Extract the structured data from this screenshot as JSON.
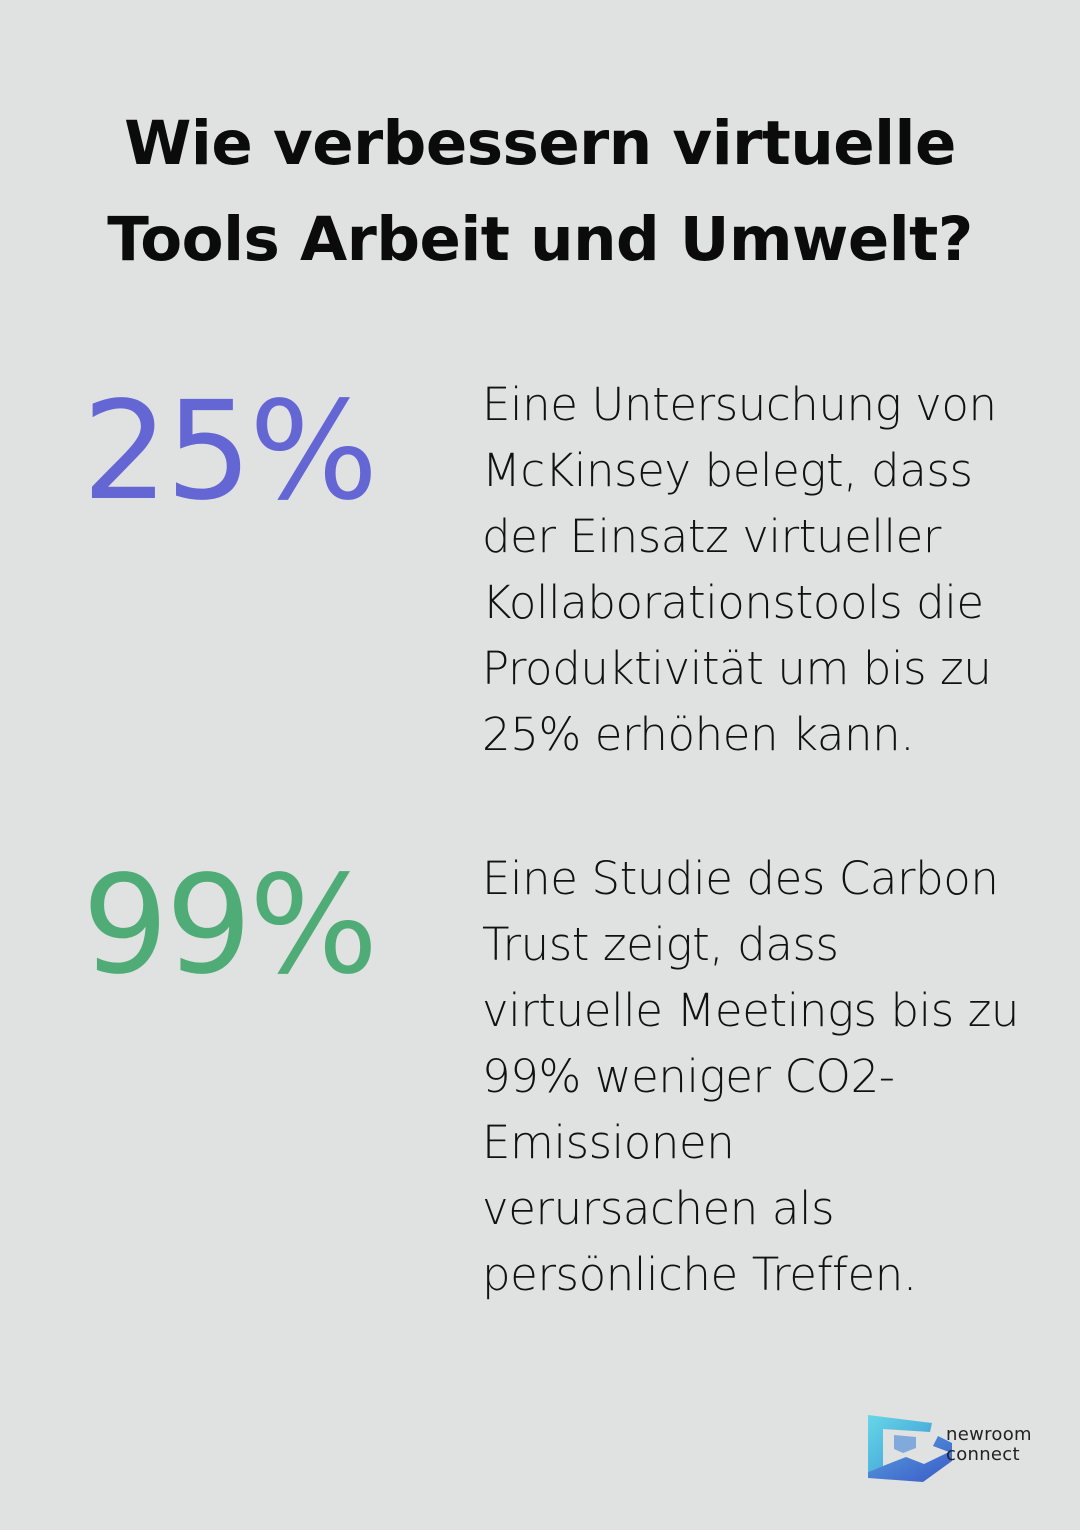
{
  "title": "Wie verbessern virtuelle Tools Arbeit und Umwelt?",
  "stats": [
    {
      "value": "25%",
      "color": "#6466d4",
      "text": "Eine Untersuchung von McKinsey belegt, dass der Einsatz virtueller Kollaborationstools die Produktivität um bis zu 25% erhöhen kann."
    },
    {
      "value": "99%",
      "color": "#4fac76",
      "text": "Eine Studie des Carbon Trust zeigt, dass virtuelle Meetings bis zu 99% weniger CO2-Emissionen verursachen als persönliche Treffen."
    }
  ],
  "logo": {
    "line1": "newroom",
    "line2": "connect",
    "icon": "newroom-connect-logo-icon"
  }
}
